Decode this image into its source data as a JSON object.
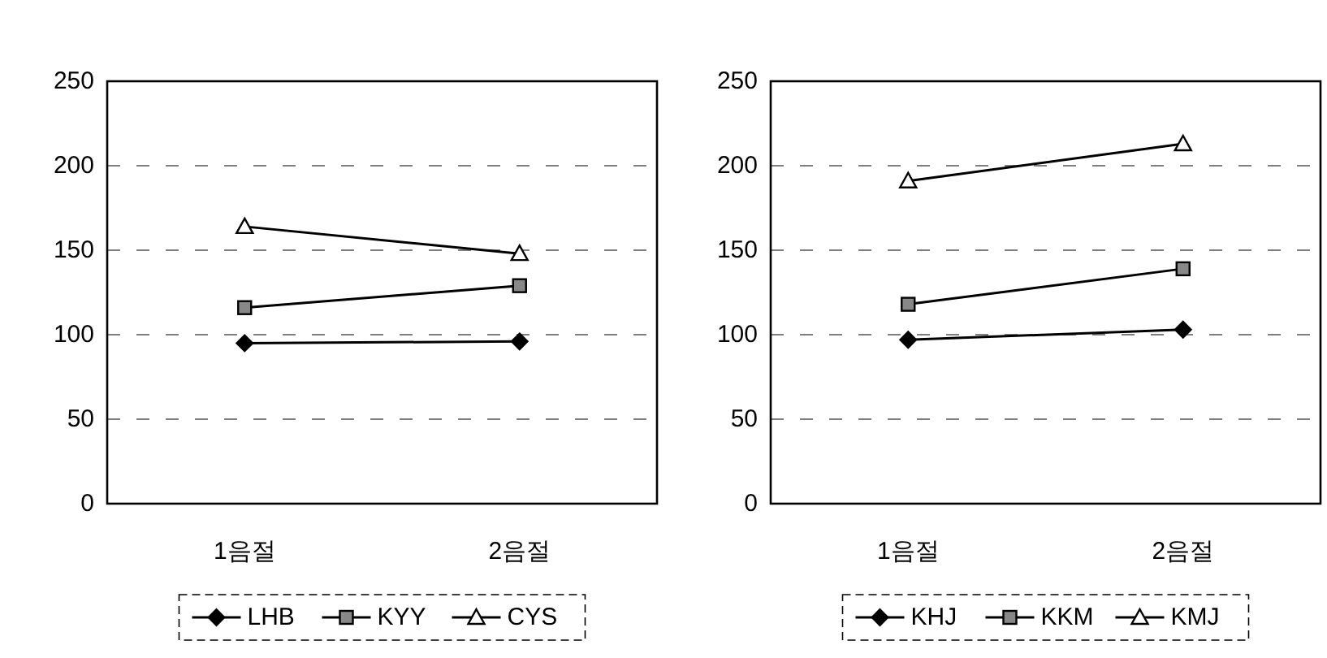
{
  "chart_data": [
    {
      "type": "line",
      "categories": [
        "1음절",
        "2음절"
      ],
      "ylim": [
        0,
        250
      ],
      "yticks": [
        0,
        50,
        100,
        150,
        200,
        250
      ],
      "grid": "y",
      "legend": "bottom",
      "line_style": "solid",
      "series": [
        {
          "name": "LHB",
          "color": "#000000",
          "marker": "diamond",
          "values": [
            95,
            96
          ]
        },
        {
          "name": "KYY",
          "color": "#000000",
          "marker": "square",
          "values": [
            116,
            129
          ]
        },
        {
          "name": "CYS",
          "color": "#000000",
          "marker": "triangle",
          "values": [
            164,
            148
          ]
        }
      ]
    },
    {
      "type": "line",
      "categories": [
        "1음절",
        "2음절"
      ],
      "ylim": [
        0,
        250
      ],
      "yticks": [
        0,
        50,
        100,
        150,
        200,
        250
      ],
      "grid": "y",
      "legend": "bottom",
      "line_style": "solid",
      "series": [
        {
          "name": "KHJ",
          "color": "#000000",
          "marker": "diamond",
          "values": [
            97,
            103
          ]
        },
        {
          "name": "KKM",
          "color": "#000000",
          "marker": "square",
          "values": [
            118,
            139
          ]
        },
        {
          "name": "KMJ",
          "color": "#000000",
          "marker": "triangle",
          "values": [
            191,
            213
          ]
        }
      ]
    }
  ]
}
